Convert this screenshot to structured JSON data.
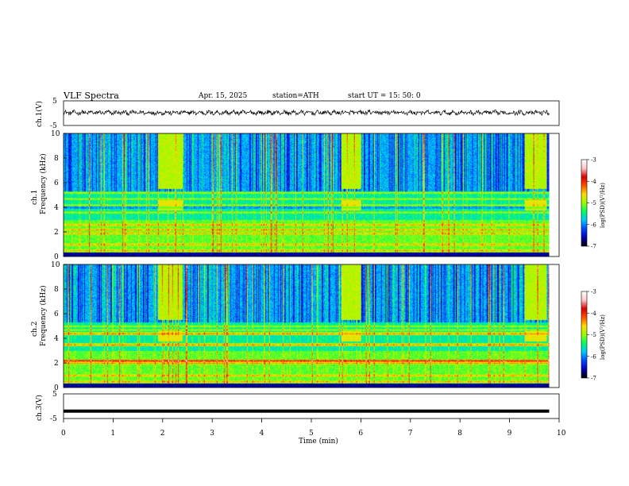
{
  "header": {
    "title": "VLF  Spectra",
    "date": "Apr. 15, 2025",
    "station": "station=ATH",
    "start": "start  UT  =   15: 50: 0"
  },
  "chart_data": [
    {
      "type": "line",
      "name": "ch1-waveform",
      "ylabel": "ch.1(V)",
      "ylim": [
        -5,
        5
      ],
      "yticks": [
        "5",
        "-5"
      ],
      "xlim": [
        0,
        10
      ],
      "visible_range": [
        0,
        9.8
      ],
      "approx_level": 0.2
    },
    {
      "type": "heatmap",
      "name": "ch1-spectrogram",
      "ylabel_channel": "ch.1",
      "ylabel": "Frequency  (kHz)",
      "ylim": [
        0,
        10
      ],
      "yticks": [
        "0",
        "2",
        "4",
        "6",
        "8",
        "10"
      ],
      "xlim": [
        0,
        10
      ],
      "visible_range": [
        0,
        9.8
      ],
      "bright_bursts_min": [
        [
          1.9,
          2.4
        ],
        [
          5.6,
          6.0
        ],
        [
          9.3,
          9.75
        ]
      ],
      "bands_khz": [
        0.5,
        1.0,
        1.9,
        2.2,
        2.6,
        3.6,
        4.2,
        4.7,
        5.2
      ]
    },
    {
      "type": "heatmap",
      "name": "ch2-spectrogram",
      "ylabel_channel": "ch.2",
      "ylabel": "Frequency  (kHz)",
      "ylim": [
        0,
        10
      ],
      "yticks": [
        "0",
        "2",
        "4",
        "6",
        "8",
        "10"
      ],
      "xlim": [
        0,
        10
      ],
      "visible_range": [
        0,
        9.8
      ],
      "bright_bursts_min": [
        [
          1.9,
          2.4
        ],
        [
          5.6,
          6.0
        ],
        [
          9.3,
          9.75
        ]
      ],
      "bands_khz": [
        0.5,
        1.0,
        2.0,
        2.2,
        3.5,
        4.4,
        4.7,
        5.0
      ]
    },
    {
      "type": "line",
      "name": "ch3-waveform",
      "ylabel": "ch.3(V)",
      "ylim": [
        -5,
        5
      ],
      "yticks": [
        "5",
        "-5"
      ],
      "xlim": [
        0,
        10
      ],
      "xticks": [
        "0",
        "1",
        "2",
        "3",
        "4",
        "5",
        "6",
        "7",
        "8",
        "9",
        "10"
      ],
      "xlabel": "Time  (min)",
      "visible_range": [
        0,
        9.8
      ],
      "approx_level": -2
    }
  ],
  "colorbar": {
    "label": "log(PSD)(V²/Hz)",
    "ticks": [
      "-3",
      "-4",
      "-5",
      "-6",
      "-7"
    ],
    "range": [
      -7,
      -3
    ],
    "colors": [
      "#000000",
      "#0000b4",
      "#0046ff",
      "#00c8ff",
      "#00ff64",
      "#96ff00",
      "#ffdc00",
      "#ff5000",
      "#dc0000",
      "#ffc8c8",
      "#ffffff"
    ]
  }
}
